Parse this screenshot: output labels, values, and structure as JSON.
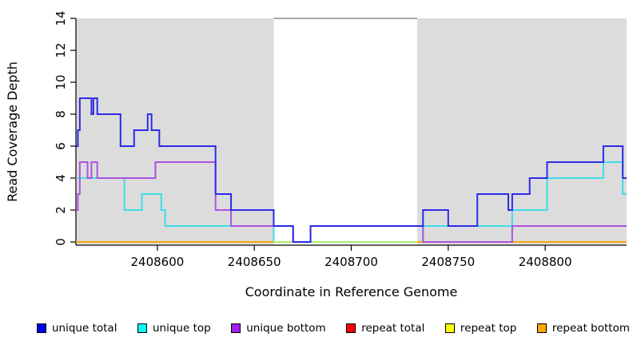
{
  "page": {
    "background_color": "#FFFFFF",
    "panel_shade_color": "#DCDCDC",
    "gap_border_color": "#8A8A8A",
    "axis_color": "#000000"
  },
  "chart_data": {
    "type": "line",
    "step": true,
    "title": "",
    "xlabel": "Coordinate in Reference Genome",
    "ylabel": "Read Coverage Depth",
    "xlim": [
      2408558,
      2408842
    ],
    "ylim": [
      0,
      14
    ],
    "x_ticks": [
      2408600,
      2408650,
      2408700,
      2408750,
      2408800
    ],
    "y_ticks": [
      0,
      2,
      4,
      6,
      8,
      10,
      12,
      14
    ],
    "grid": false,
    "legend_position": "bottom",
    "shaded_regions": [
      [
        2408558,
        2408660
      ],
      [
        2408734,
        2408842
      ]
    ],
    "unshaded_gap": [
      2408660,
      2408734
    ],
    "draw_order": [
      "repeat total",
      "unique top",
      "repeat top",
      "repeat bottom",
      "unique bottom",
      "unique total"
    ],
    "series": [
      {
        "name": "unique total",
        "color": "#0000EE",
        "line_color": "#2B2BE8",
        "opacity": 1,
        "segments": [
          [
            [
              2408558,
              6
            ],
            [
              2408559,
              7
            ],
            [
              2408560,
              9
            ],
            [
              2408566,
              8
            ],
            [
              2408567,
              9
            ],
            [
              2408569,
              8
            ],
            [
              2408581,
              6
            ],
            [
              2408588,
              7
            ],
            [
              2408595,
              8
            ],
            [
              2408597,
              7
            ],
            [
              2408601,
              6
            ],
            [
              2408630,
              3
            ],
            [
              2408638,
              2
            ],
            [
              2408660,
              1
            ],
            [
              2408670,
              0
            ],
            [
              2408679,
              1
            ],
            [
              2408737,
              2
            ],
            [
              2408750,
              1
            ],
            [
              2408765,
              3
            ],
            [
              2408781,
              2
            ],
            [
              2408783,
              3
            ],
            [
              2408792,
              4
            ],
            [
              2408801,
              5
            ],
            [
              2408830,
              6
            ],
            [
              2408840,
              4
            ],
            [
              2408842,
              4
            ]
          ]
        ]
      },
      {
        "name": "unique top",
        "color": "#00FFFF",
        "line_color": "#3CDEE8",
        "opacity": 1,
        "segments": [
          [
            [
              2408558,
              4
            ],
            [
              2408583,
              2
            ],
            [
              2408592,
              3
            ],
            [
              2408602,
              2
            ],
            [
              2408604,
              1
            ],
            [
              2408660,
              0
            ],
            [
              2408737,
              1
            ],
            [
              2408783,
              2
            ],
            [
              2408801,
              4
            ],
            [
              2408830,
              5
            ],
            [
              2408840,
              3
            ],
            [
              2408842,
              3
            ]
          ]
        ]
      },
      {
        "name": "unique bottom",
        "color": "#A020F0",
        "line_color": "#AC52E0",
        "opacity": 1,
        "segments": [
          [
            [
              2408558,
              2
            ],
            [
              2408559,
              3
            ],
            [
              2408560,
              5
            ],
            [
              2408564,
              4
            ],
            [
              2408566,
              5
            ],
            [
              2408569,
              4
            ],
            [
              2408599,
              5
            ],
            [
              2408630,
              2
            ],
            [
              2408638,
              1
            ],
            [
              2408670,
              0
            ],
            [
              2408679,
              1
            ],
            [
              2408737,
              0
            ],
            [
              2408783,
              1
            ],
            [
              2408842,
              1
            ]
          ]
        ]
      },
      {
        "name": "repeat total",
        "color": "#FF0000",
        "line_color": "#FF0000",
        "opacity": 1,
        "segments": [
          [
            [
              2408558,
              0
            ],
            [
              2408842,
              0
            ]
          ]
        ]
      },
      {
        "name": "repeat top",
        "color": "#FFFF00",
        "line_color": "#FFFF00",
        "opacity": 0.55,
        "segments": [
          [
            [
              2408558,
              0
            ],
            [
              2408842,
              0
            ]
          ]
        ]
      },
      {
        "name": "repeat bottom",
        "color": "#FFA500",
        "line_color": "#FFA408",
        "opacity": 1,
        "segments": [
          [
            [
              2408558,
              0
            ],
            [
              2408660,
              0
            ]
          ],
          [
            [
              2408734,
              0
            ],
            [
              2408842,
              0
            ]
          ]
        ]
      }
    ]
  }
}
